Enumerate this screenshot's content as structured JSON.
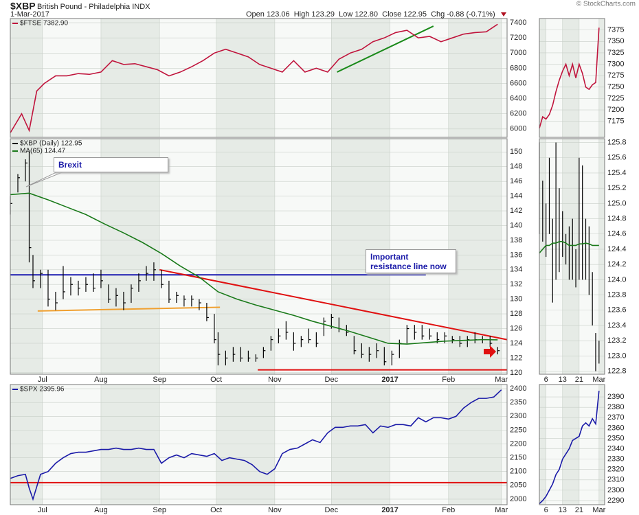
{
  "header": {
    "symbol": "$XBP",
    "name": "British Pound - Philadelphia INDX",
    "date": "1-Mar-2017",
    "quote": "Open 123.06  High 123.29  Low 122.80  Close 122.95  Chg -0.88 (-0.71%)",
    "credit": "© StockCharts.com"
  },
  "annotations": [
    "Brexit",
    "Important resistance line now"
  ],
  "chart_data": [
    {
      "type": "line",
      "xlim": [
        0,
        263
      ],
      "xticks": [
        17,
        48,
        79,
        109,
        140,
        170,
        201,
        232,
        260
      ],
      "ylim": [
        5890,
        7455
      ],
      "yticks": [
        6000,
        6200,
        6400,
        6600,
        6800,
        7000,
        7200,
        7400
      ],
      "series": [
        {
          "name": "$FTSE 7382.90",
          "color": "#c0143c",
          "x": [
            0,
            6,
            10,
            14,
            18,
            24,
            30,
            36,
            42,
            48,
            54,
            60,
            66,
            72,
            78,
            84,
            90,
            96,
            102,
            108,
            114,
            120,
            126,
            132,
            138,
            144,
            150,
            156,
            162,
            168,
            174,
            180,
            186,
            192,
            198,
            204,
            210,
            216,
            222,
            228,
            234,
            240,
            246,
            252,
            258
          ],
          "values": [
            5950,
            6200,
            5980,
            6500,
            6600,
            6700,
            6700,
            6730,
            6720,
            6750,
            6900,
            6850,
            6860,
            6820,
            6780,
            6700,
            6750,
            6820,
            6900,
            7000,
            7050,
            7000,
            6950,
            6850,
            6800,
            6750,
            6900,
            6750,
            6800,
            6750,
            6920,
            7000,
            7050,
            7150,
            7200,
            7270,
            7300,
            7200,
            7220,
            7150,
            7200,
            7250,
            7270,
            7280,
            7380
          ]
        }
      ],
      "trendlines": [
        {
          "color": "#1a8a1a",
          "x": [
            173,
            224
          ],
          "y": [
            6750,
            7355
          ]
        }
      ]
    },
    {
      "type": "ohlc",
      "xlim": [
        0,
        263
      ],
      "xticks": [
        {
          "value": 17,
          "label": "Jul"
        },
        {
          "value": 48,
          "label": "Aug"
        },
        {
          "value": 79,
          "label": "Sep"
        },
        {
          "value": 109,
          "label": "Oct"
        },
        {
          "value": 140,
          "label": "Nov"
        },
        {
          "value": 170,
          "label": "Dec"
        },
        {
          "value": 201,
          "label": "2017"
        },
        {
          "value": 232,
          "label": "Feb"
        },
        {
          "value": 260,
          "label": "Mar"
        }
      ],
      "ylim": [
        119.8,
        151.8
      ],
      "yticks": [
        120,
        122,
        124,
        126,
        128,
        130,
        132,
        134,
        136,
        138,
        140,
        142,
        144,
        146,
        148,
        150
      ],
      "series": [
        {
          "name": "$XBP (Daily) 122.95",
          "color": "#000000",
          "x": [
            0,
            4,
            8,
            10,
            12,
            16,
            20,
            24,
            28,
            32,
            36,
            40,
            44,
            48,
            52,
            56,
            60,
            64,
            68,
            72,
            76,
            80,
            84,
            88,
            92,
            96,
            100,
            104,
            108,
            110,
            114,
            118,
            122,
            126,
            130,
            134,
            138,
            142,
            146,
            150,
            154,
            158,
            162,
            166,
            170,
            174,
            178,
            182,
            186,
            190,
            194,
            198,
            202,
            206,
            210,
            214,
            218,
            222,
            226,
            230,
            234,
            238,
            242,
            246,
            250,
            254,
            258
          ],
          "high": [
            144,
            147,
            149,
            150,
            136,
            134,
            134,
            131,
            134.5,
            133,
            132.5,
            133,
            133.5,
            134,
            132,
            131.5,
            131,
            132,
            133.5,
            134.5,
            135,
            134,
            132.5,
            131,
            130.5,
            130.5,
            130,
            129.5,
            128,
            125.5,
            123,
            123.5,
            123.5,
            123,
            122.5,
            123.5,
            125,
            126,
            127,
            125.5,
            125,
            126,
            125.5,
            127.5,
            128,
            127.5,
            126.5,
            125,
            124,
            123.5,
            124,
            123.5,
            123,
            124.5,
            126.5,
            126.5,
            126.5,
            126,
            125.5,
            125.5,
            125,
            125,
            125,
            125.5,
            125,
            125,
            123.5
          ],
          "low": [
            141.5,
            144.5,
            146,
            135,
            131.5,
            131.5,
            129,
            128.5,
            130,
            130.5,
            130.5,
            131,
            131,
            131.5,
            129.5,
            129,
            128.5,
            129.5,
            131,
            132.5,
            132.5,
            131.5,
            129.5,
            129.5,
            129,
            129,
            128.5,
            127,
            124,
            121,
            121,
            121.5,
            121.5,
            121.5,
            121.5,
            122,
            123,
            124,
            124.5,
            123,
            123.5,
            124,
            123.5,
            125,
            126,
            125.5,
            125,
            122.5,
            122,
            121.5,
            122,
            121,
            121,
            122,
            124,
            124.5,
            124.5,
            124.5,
            124,
            124,
            124,
            123.5,
            123.5,
            124,
            124,
            123.5,
            122.5
          ],
          "close": [
            143,
            146.5,
            148.5,
            137,
            132.5,
            133.5,
            130,
            129.5,
            131,
            132,
            131.5,
            132,
            131.5,
            132.5,
            130,
            130.5,
            129.5,
            131.5,
            132.5,
            133.5,
            134,
            132,
            130,
            130.5,
            130,
            130,
            129.5,
            127.5,
            124.5,
            122.5,
            122,
            122.5,
            122,
            122,
            122,
            123,
            124.5,
            125,
            125.5,
            124,
            124.5,
            124.5,
            124,
            127,
            127.5,
            126,
            125.5,
            123,
            122.5,
            122.5,
            123,
            121.5,
            122.5,
            124,
            126,
            125.5,
            125,
            125,
            124.5,
            125,
            124.5,
            124,
            124.5,
            124.5,
            124.5,
            124,
            123
          ]
        },
        {
          "type": "line",
          "name": "MA(65) 124.47",
          "color": "#1a7a1a",
          "x": [
            0,
            10,
            20,
            30,
            40,
            50,
            60,
            70,
            80,
            90,
            100,
            110,
            120,
            130,
            140,
            150,
            160,
            170,
            180,
            190,
            200,
            210,
            220,
            230,
            240,
            250,
            258
          ],
          "values": [
            144.2,
            144.4,
            143.5,
            142.5,
            141.5,
            140.2,
            139,
            137.7,
            136.2,
            134.5,
            133,
            131,
            130,
            129.2,
            128.5,
            127.8,
            127,
            126.3,
            125.6,
            124.8,
            124,
            123.9,
            124.1,
            124.3,
            124.4,
            124.5,
            124.47
          ]
        }
      ],
      "trendlines": [
        {
          "color": "#1a1ab0",
          "x": [
            0,
            220
          ],
          "y": [
            133.3,
            133.3
          ]
        },
        {
          "color": "#f0a030",
          "x": [
            14.5,
            111
          ],
          "y": [
            128.4,
            128.9
          ]
        },
        {
          "color": "#e01010",
          "x": [
            79,
            263
          ],
          "y": [
            134.0,
            124.5
          ]
        },
        {
          "color": "#e01010",
          "x": [
            131,
            263
          ],
          "y": [
            120.4,
            120.4
          ]
        }
      ]
    },
    {
      "type": "line",
      "xlim": [
        0,
        263
      ],
      "xticks": [
        {
          "value": 17,
          "label": "Jul"
        },
        {
          "value": 48,
          "label": "Aug"
        },
        {
          "value": 79,
          "label": "Sep"
        },
        {
          "value": 109,
          "label": "Oct"
        },
        {
          "value": 140,
          "label": "Nov"
        },
        {
          "value": 170,
          "label": "Dec"
        },
        {
          "value": 201,
          "label": "2017"
        },
        {
          "value": 232,
          "label": "Feb"
        },
        {
          "value": 260,
          "label": "Mar"
        }
      ],
      "ylim": [
        1980,
        2415
      ],
      "yticks": [
        2000,
        2050,
        2100,
        2150,
        2200,
        2250,
        2300,
        2350,
        2400
      ],
      "series": [
        {
          "name": "$SPX 2395.96",
          "color": "#1a1aa8",
          "x": [
            0,
            4,
            8,
            10,
            12,
            16,
            20,
            24,
            28,
            32,
            36,
            40,
            44,
            48,
            52,
            56,
            60,
            64,
            68,
            72,
            76,
            80,
            84,
            88,
            92,
            96,
            100,
            104,
            108,
            112,
            116,
            120,
            124,
            128,
            132,
            136,
            140,
            144,
            148,
            152,
            156,
            160,
            164,
            168,
            172,
            176,
            180,
            184,
            188,
            192,
            196,
            200,
            204,
            208,
            212,
            216,
            220,
            224,
            228,
            232,
            236,
            240,
            244,
            248,
            252,
            256,
            260
          ],
          "values": [
            2075,
            2085,
            2090,
            2040,
            2000,
            2090,
            2100,
            2130,
            2150,
            2165,
            2170,
            2170,
            2175,
            2180,
            2180,
            2185,
            2180,
            2180,
            2185,
            2180,
            2180,
            2130,
            2150,
            2160,
            2150,
            2165,
            2160,
            2155,
            2165,
            2140,
            2150,
            2145,
            2140,
            2125,
            2100,
            2090,
            2110,
            2165,
            2180,
            2185,
            2200,
            2215,
            2205,
            2240,
            2260,
            2260,
            2265,
            2265,
            2270,
            2240,
            2265,
            2260,
            2270,
            2270,
            2265,
            2295,
            2280,
            2295,
            2295,
            2290,
            2300,
            2330,
            2350,
            2365,
            2365,
            2370,
            2396
          ]
        }
      ],
      "trendlines": [
        {
          "color": "#e01010",
          "x": [
            0,
            263
          ],
          "y": [
            2060,
            2060
          ]
        }
      ]
    },
    {
      "type": "line",
      "xlim": [
        0,
        19.7
      ],
      "xticks": [
        2,
        7,
        12,
        18
      ],
      "ylim": [
        7140,
        7400
      ],
      "yticks": [
        7175,
        7200,
        7225,
        7250,
        7275,
        7300,
        7325,
        7350,
        7375
      ],
      "series": [
        {
          "color": "#c0143c",
          "x": [
            0,
            1,
            2,
            3,
            4,
            5,
            6,
            7,
            8,
            9,
            10,
            11,
            12,
            13,
            14,
            15,
            16,
            17,
            18
          ],
          "values": [
            7160,
            7185,
            7180,
            7190,
            7210,
            7240,
            7265,
            7285,
            7300,
            7275,
            7300,
            7270,
            7300,
            7280,
            7250,
            7245,
            7255,
            7260,
            7380
          ]
        }
      ]
    },
    {
      "type": "ohlc",
      "xlim": [
        0,
        19.7
      ],
      "xticks": [
        {
          "value": 2,
          "label": "6"
        },
        {
          "value": 7,
          "label": "13"
        },
        {
          "value": 12,
          "label": "21"
        },
        {
          "value": 18,
          "label": "Mar"
        }
      ],
      "ylim": [
        122.76,
        125.85
      ],
      "yticks": [
        122.8,
        {
          "value": 123,
          "label": "123.0"
        },
        123.2,
        123.4,
        123.6,
        123.8,
        {
          "value": 124,
          "label": "124.0"
        },
        124.2,
        124.4,
        124.6,
        124.8,
        {
          "value": 125,
          "label": "125.0"
        },
        125.2,
        125.4,
        125.6,
        125.8
      ],
      "series": [
        {
          "color": "#000000",
          "x": [
            0,
            1,
            2,
            3,
            4,
            5,
            6,
            7,
            8,
            9,
            10,
            11,
            12,
            13,
            14,
            15,
            16,
            17,
            18
          ],
          "high": [
            125.8,
            125.3,
            125.0,
            125.6,
            124.8,
            125.8,
            125.2,
            124.9,
            124.6,
            124.7,
            124.8,
            124.4,
            125.6,
            125.5,
            124.8,
            124.7,
            124.1,
            123.3,
            123.2
          ],
          "low": [
            124.6,
            124.5,
            124.3,
            124.6,
            123.7,
            124.0,
            124.1,
            124.3,
            124.2,
            124.0,
            124.0,
            123.9,
            124.0,
            124.0,
            124.0,
            123.8,
            123.4,
            122.8,
            122.9
          ]
        },
        {
          "type": "line",
          "color": "#1a7a1a",
          "x": [
            0,
            1,
            2,
            3,
            4,
            5,
            6,
            7,
            8,
            9,
            10,
            11,
            12,
            13,
            14,
            15,
            16,
            17,
            18
          ],
          "values": [
            124.35,
            124.4,
            124.45,
            124.45,
            124.48,
            124.48,
            124.5,
            124.5,
            124.48,
            124.45,
            124.45,
            124.45,
            124.47,
            124.47,
            124.48,
            124.47,
            124.45,
            124.45,
            124.45
          ]
        }
      ]
    },
    {
      "type": "line",
      "xlim": [
        0,
        19.7
      ],
      "xticks": [
        {
          "value": 2,
          "label": "6"
        },
        {
          "value": 7,
          "label": "13"
        },
        {
          "value": 12,
          "label": "21"
        },
        {
          "value": 18,
          "label": "Mar"
        }
      ],
      "ylim": [
        2286,
        2402
      ],
      "yticks": [
        2290,
        2300,
        2310,
        2320,
        2330,
        2340,
        2350,
        2360,
        2370,
        2380,
        2390
      ],
      "series": [
        {
          "color": "#1a1aa8",
          "x": [
            0,
            1,
            2,
            3,
            4,
            5,
            6,
            7,
            8,
            9,
            10,
            11,
            12,
            13,
            14,
            15,
            16,
            17,
            18
          ],
          "values": [
            2287,
            2290,
            2294,
            2300,
            2306,
            2315,
            2320,
            2330,
            2335,
            2340,
            2348,
            2350,
            2352,
            2362,
            2365,
            2362,
            2369,
            2364,
            2396
          ]
        }
      ]
    }
  ]
}
